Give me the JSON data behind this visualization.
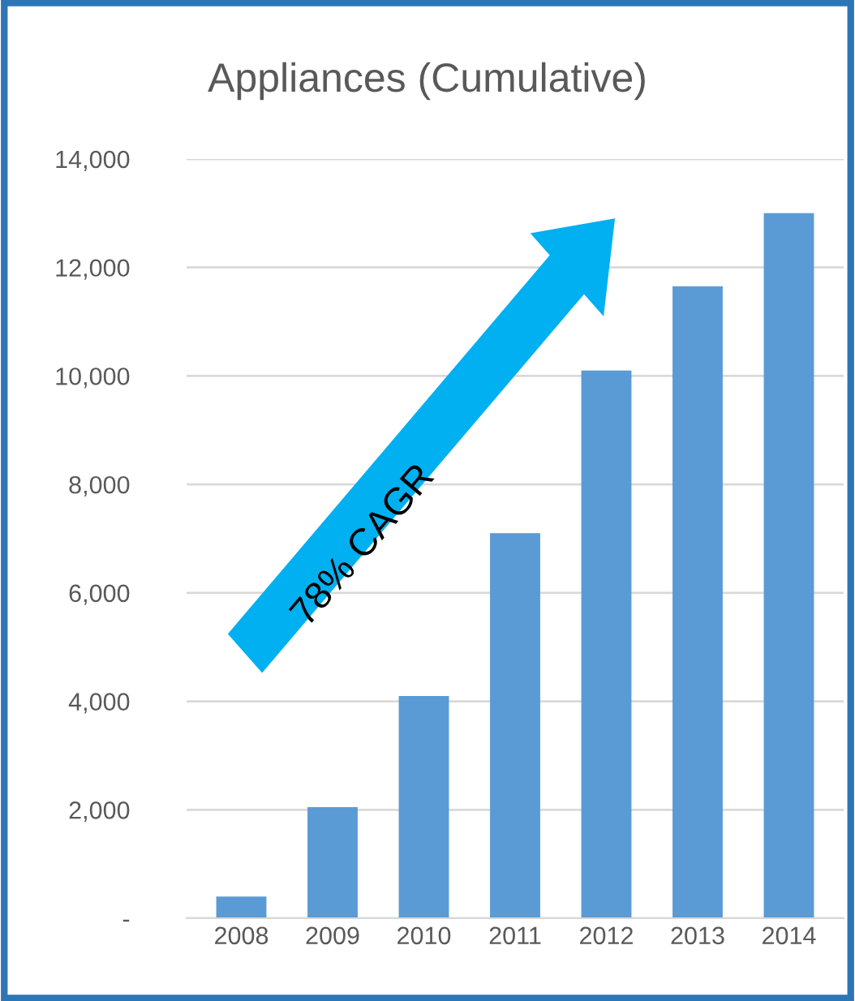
{
  "chart_data": {
    "type": "bar",
    "title": "Appliances (Cumulative)",
    "categories": [
      "2008",
      "2009",
      "2010",
      "2011",
      "2012",
      "2013",
      "2014"
    ],
    "values": [
      400,
      2050,
      4100,
      7100,
      10100,
      11650,
      13000
    ],
    "color": "#5b9bd5",
    "ylim": [
      0,
      14000
    ],
    "yticks": [
      {
        "value": 0,
        "label": "-"
      },
      {
        "value": 2000,
        "label": "2,000"
      },
      {
        "value": 4000,
        "label": "4,000"
      },
      {
        "value": 6000,
        "label": "6,000"
      },
      {
        "value": 8000,
        "label": "8,000"
      },
      {
        "value": 10000,
        "label": "10,000"
      },
      {
        "value": 12000,
        "label": "12,000"
      },
      {
        "value": 14000,
        "label": "14,000"
      }
    ],
    "grid": "y",
    "annotations": [
      "78% CAGR"
    ]
  }
}
